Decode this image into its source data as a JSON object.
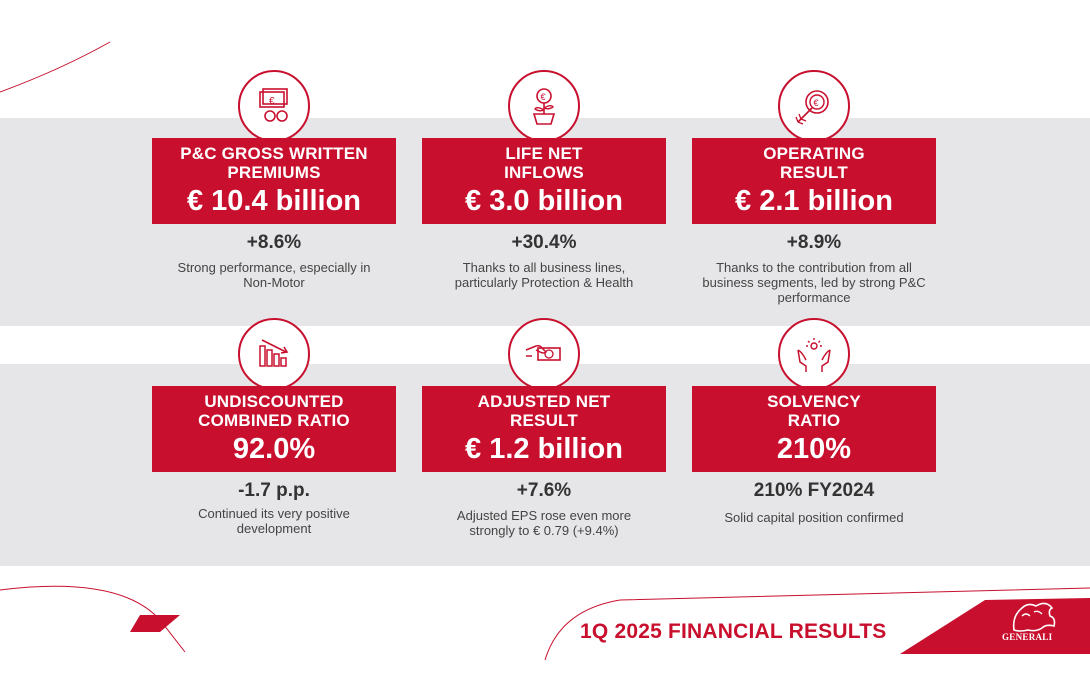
{
  "cards": [
    {
      "title": "P&C GROSS WRITTEN PREMIUMS",
      "value": "€ 10.4 billion",
      "change": "+8.6%",
      "desc": "Strong performance, especially in Non-Motor",
      "icon": "money-coins-icon"
    },
    {
      "title": "LIFE NET INFLOWS",
      "value": "€ 3.0 billion",
      "change": "+30.4%",
      "desc": "Thanks to all business lines, particularly Protection & Health",
      "icon": "euro-plant-icon"
    },
    {
      "title": "OPERATING RESULT",
      "value": "€ 2.1 billion",
      "change": "+8.9%",
      "desc": "Thanks to the contribution from all business segments, led by strong P&C performance",
      "icon": "target-arrow-icon"
    },
    {
      "title": "UNDISCOUNTED COMBINED RATIO",
      "value": "92.0%",
      "change": "-1.7 p.p.",
      "desc": "Continued its very positive development",
      "icon": "declining-chart-icon"
    },
    {
      "title": "ADJUSTED NET RESULT",
      "value": "€ 1.2 billion",
      "change": "+7.6%",
      "desc": "Adjusted EPS rose even more strongly to € 0.79 (+9.4%)",
      "icon": "hand-banknote-icon"
    },
    {
      "title": "SOLVENCY RATIO",
      "value": "210%",
      "change": "210% FY2024",
      "desc": "Solid capital position confirmed",
      "icon": "hands-protect-icon"
    }
  ],
  "footer": {
    "title": "1Q 2025 FINANCIAL RESULTS",
    "logo": "GENERALI"
  },
  "colors": {
    "accent": "#c8102e",
    "band": "#e6e6e8"
  }
}
